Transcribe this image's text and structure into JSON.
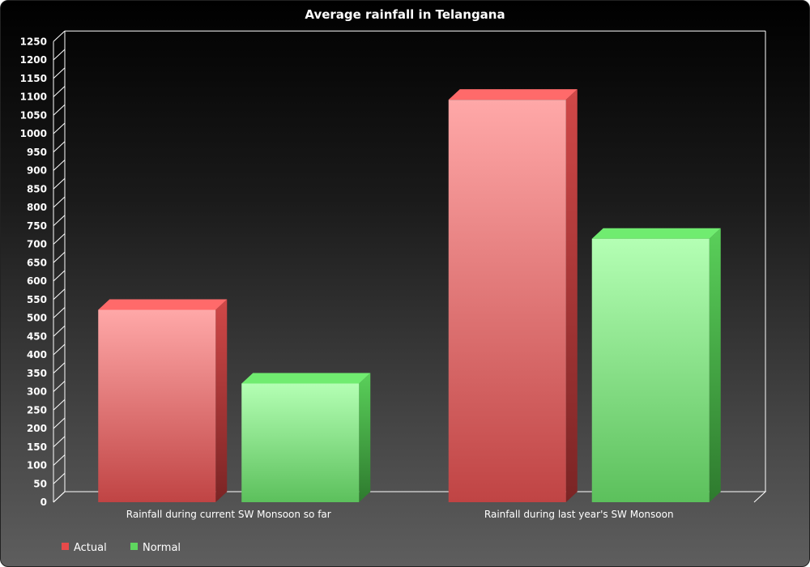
{
  "chart_data": {
    "type": "bar",
    "title": "Average rainfall in Telangana",
    "categories": [
      "Rainfall during current SW Monsoon so far",
      "Rainfall during last year's SW Monsoon"
    ],
    "series": [
      {
        "name": "Actual",
        "values": [
          522,
          1092
        ],
        "color": "#e84a4a"
      },
      {
        "name": "Normal",
        "values": [
          322,
          715
        ],
        "color": "#5fd65f"
      }
    ],
    "ylim": [
      0,
      1250
    ],
    "yticks": [
      0,
      50,
      100,
      150,
      200,
      250,
      300,
      350,
      400,
      450,
      500,
      550,
      600,
      650,
      700,
      750,
      800,
      850,
      900,
      950,
      1000,
      1050,
      1100,
      1150,
      1200,
      1250
    ],
    "xlabel": "",
    "ylabel": "",
    "grid": false,
    "legend_position": "bottom-left",
    "style": "3d-bar"
  }
}
